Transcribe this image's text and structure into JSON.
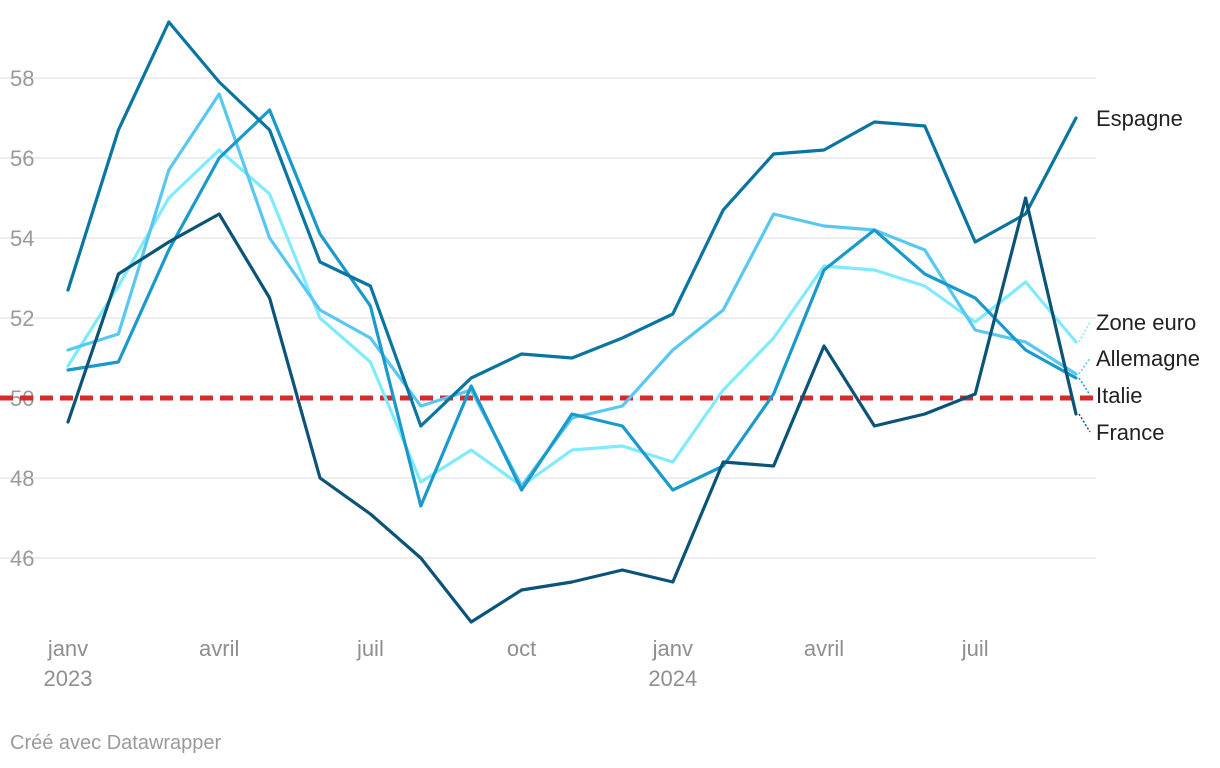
{
  "chart_data": {
    "type": "line",
    "x": [
      "2023-01",
      "2023-02",
      "2023-03",
      "2023-04",
      "2023-05",
      "2023-06",
      "2023-07",
      "2023-08",
      "2023-09",
      "2023-10",
      "2023-11",
      "2023-12",
      "2024-01",
      "2024-02",
      "2024-03",
      "2024-04",
      "2024-05",
      "2024-06",
      "2024-07",
      "2024-08",
      "2024-09"
    ],
    "ylim": [
      44,
      59.6
    ],
    "yticks": [
      46,
      48,
      50,
      52,
      54,
      56,
      58
    ],
    "xticks": [
      {
        "x": "2023-01",
        "label": "janv",
        "year": "2023"
      },
      {
        "x": "2023-04",
        "label": "avril",
        "year": ""
      },
      {
        "x": "2023-07",
        "label": "juil",
        "year": ""
      },
      {
        "x": "2023-10",
        "label": "oct",
        "year": ""
      },
      {
        "x": "2024-01",
        "label": "janv",
        "year": "2024"
      },
      {
        "x": "2024-04",
        "label": "avril",
        "year": ""
      },
      {
        "x": "2024-07",
        "label": "juil",
        "year": ""
      }
    ],
    "grid": true,
    "reference_line": {
      "y": 50,
      "color": "#d42b2b",
      "style": "dashed"
    },
    "series": [
      {
        "name": "Espagne",
        "color": "#0a75a0",
        "values": [
          52.7,
          56.7,
          59.4,
          57.9,
          56.7,
          53.4,
          52.8,
          49.3,
          50.5,
          51.1,
          51.0,
          51.5,
          52.1,
          54.7,
          56.1,
          56.2,
          56.9,
          56.8,
          53.9,
          54.6,
          57.0
        ]
      },
      {
        "name": "Zone euro",
        "color": "#80eaff",
        "values": [
          50.8,
          52.8,
          55.0,
          56.2,
          55.1,
          52.0,
          50.9,
          47.9,
          48.7,
          47.8,
          48.7,
          48.8,
          48.4,
          50.2,
          51.5,
          53.3,
          53.2,
          52.8,
          51.9,
          52.9,
          51.4
        ]
      },
      {
        "name": "Allemagne",
        "color": "#58c7f2",
        "values": [
          51.2,
          51.6,
          55.7,
          57.6,
          54.0,
          52.2,
          51.5,
          49.8,
          50.2,
          47.8,
          49.5,
          49.8,
          51.2,
          52.2,
          54.6,
          54.3,
          54.2,
          53.7,
          51.7,
          51.4,
          50.6
        ]
      },
      {
        "name": "Italie",
        "color": "#1a9acc",
        "values": [
          50.7,
          50.9,
          53.7,
          56.0,
          57.2,
          54.1,
          52.3,
          47.3,
          50.3,
          47.7,
          49.6,
          49.3,
          47.7,
          48.3,
          50.1,
          53.2,
          54.2,
          53.1,
          52.5,
          51.2,
          50.5
        ]
      },
      {
        "name": "France",
        "color": "#0b5478",
        "values": [
          49.4,
          53.1,
          53.9,
          54.6,
          52.5,
          48.0,
          47.1,
          46.0,
          44.4,
          45.2,
          45.4,
          45.7,
          45.4,
          48.4,
          48.3,
          51.3,
          49.3,
          49.6,
          50.1,
          55.0,
          49.6
        ]
      }
    ]
  },
  "credit": "Créé avec Datawrapper"
}
